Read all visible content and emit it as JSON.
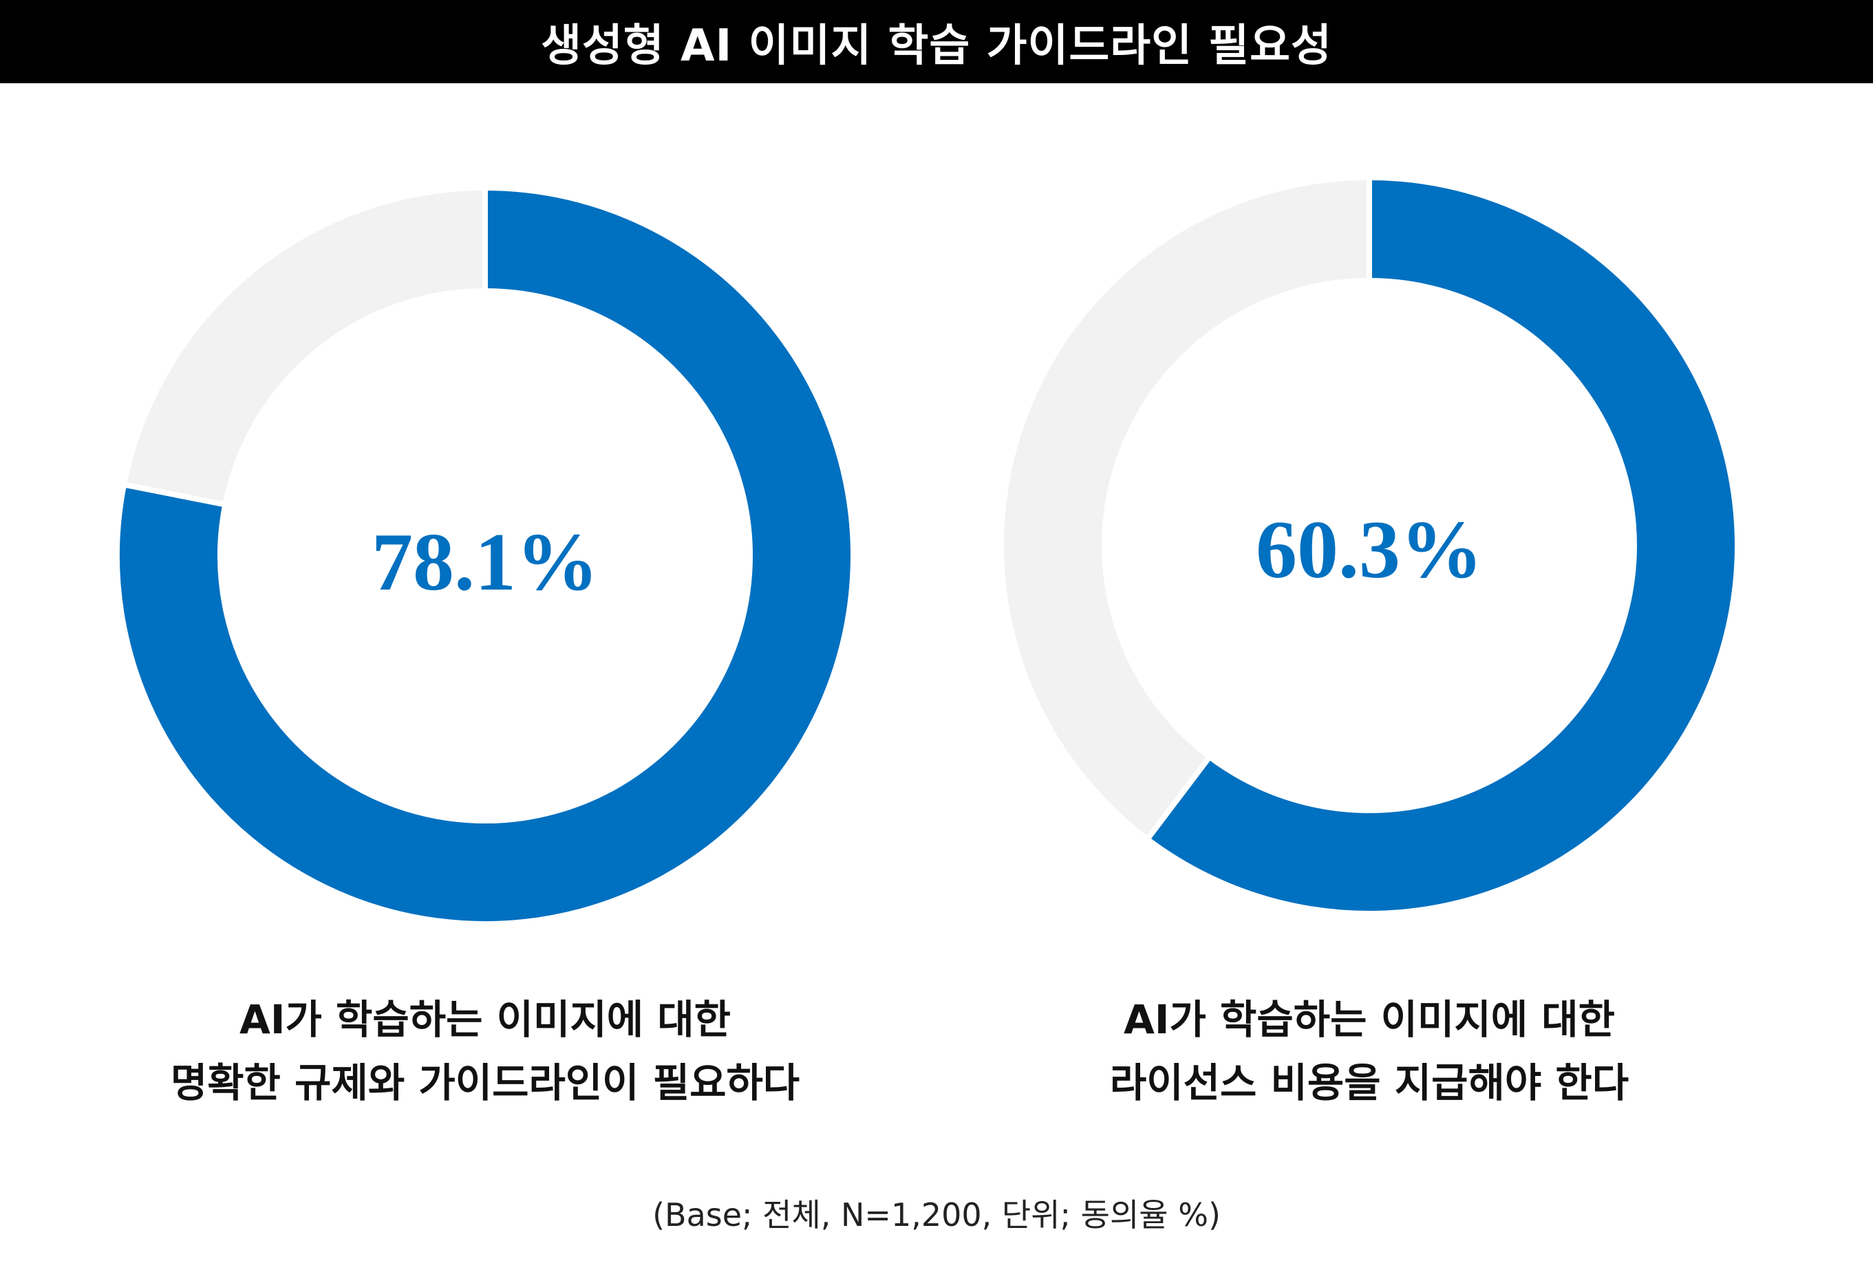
{
  "title": "생성형 AI 이미지 학습 가이드라인 필요성",
  "colors": {
    "agree": "#0070C0",
    "rest": "#F2F2F2",
    "title_bg": "#000000"
  },
  "chart_data": [
    {
      "type": "pie",
      "variant": "donut",
      "center_label": "78.1%",
      "labels": [
        "AI가 학습하는 이미지에 대한",
        "명확한 규제와 가이드라인이 필요하다"
      ],
      "slices": [
        {
          "value": 78.1,
          "color": "#0070C0"
        },
        {
          "value": 21.9,
          "color": "#F2F2F2"
        }
      ]
    },
    {
      "type": "pie",
      "variant": "donut",
      "center_label": "60.3%",
      "labels": [
        "AI가 학습하는 이미지에 대한",
        "라이선스 비용을 지급해야 한다"
      ],
      "slices": [
        {
          "value": 60.3,
          "color": "#0070C0"
        },
        {
          "value": 39.7,
          "color": "#F2F2F2"
        }
      ]
    }
  ],
  "note": "(Base; 전체, N=1,200, 단위; 동의율 %)"
}
